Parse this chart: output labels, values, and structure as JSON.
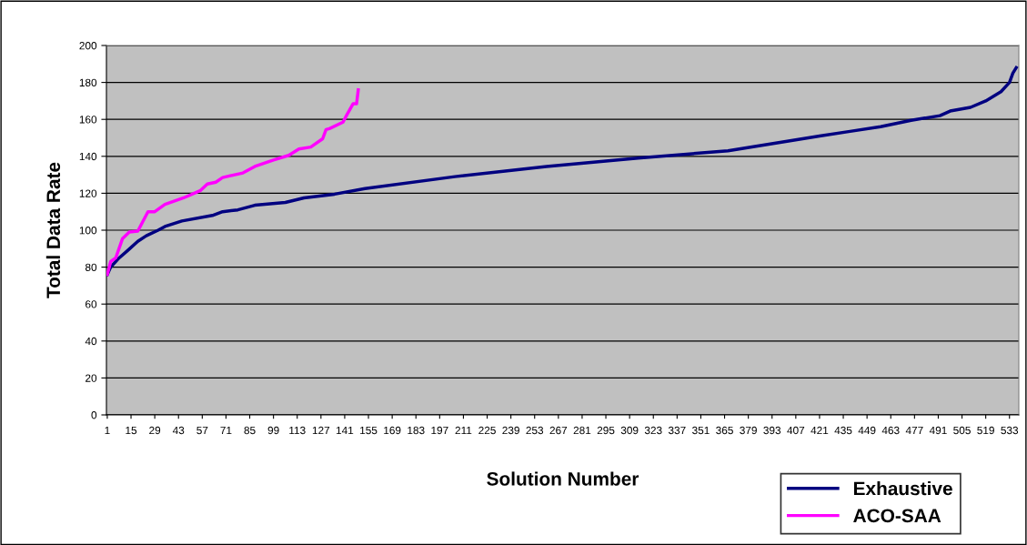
{
  "chart_data": {
    "type": "line",
    "xlabel": "Solution Number",
    "ylabel": "Total Data Rate",
    "xlim": [
      0.5,
      538.5
    ],
    "xticks": [
      1,
      15,
      29,
      43,
      57,
      71,
      85,
      99,
      113,
      127,
      141,
      155,
      169,
      183,
      197,
      211,
      225,
      239,
      253,
      267,
      281,
      295,
      309,
      323,
      337,
      351,
      365,
      379,
      393,
      407,
      421,
      435,
      449,
      463,
      477,
      491,
      505,
      519,
      533
    ],
    "ylim": [
      0,
      200
    ],
    "yticks": [
      0,
      20,
      40,
      60,
      80,
      100,
      120,
      140,
      160,
      180,
      200
    ],
    "grid": "y",
    "legend": "bottom right",
    "marker": "none",
    "line_style": "solid",
    "series": [
      {
        "name": "Exhaustive",
        "color": "#000080",
        "x": [
          1,
          3,
          8,
          13,
          19,
          24,
          31,
          35,
          45,
          63,
          69,
          78,
          88,
          106,
          117,
          135,
          153,
          206,
          260,
          314,
          367,
          421,
          439,
          457,
          475,
          492,
          498,
          510,
          519,
          528,
          533,
          535,
          537
        ],
        "values": [
          76,
          80,
          85,
          89,
          94,
          97,
          100,
          102,
          105,
          108,
          110,
          111,
          113.5,
          115,
          117.5,
          119.5,
          122.5,
          129,
          134.5,
          139,
          143,
          151,
          153.5,
          156,
          159.5,
          162,
          164.5,
          166.5,
          170,
          175,
          180,
          185,
          188
        ]
      },
      {
        "name": "ACO-SAA",
        "color": "#ff00ff",
        "x": [
          1,
          3,
          6,
          10,
          14,
          19,
          25,
          29,
          35,
          46,
          56,
          60,
          65,
          69,
          81,
          88,
          99,
          108,
          114,
          121,
          128,
          130,
          132,
          140,
          142,
          146,
          148,
          149
        ],
        "values": [
          76,
          83,
          85,
          95.5,
          99,
          99.5,
          110,
          110,
          114,
          117.5,
          121.5,
          125,
          126,
          128.5,
          131,
          134.5,
          138,
          140.5,
          144,
          145,
          149.5,
          154.5,
          155,
          158.5,
          162,
          168.5,
          168.5,
          176
        ]
      }
    ]
  }
}
